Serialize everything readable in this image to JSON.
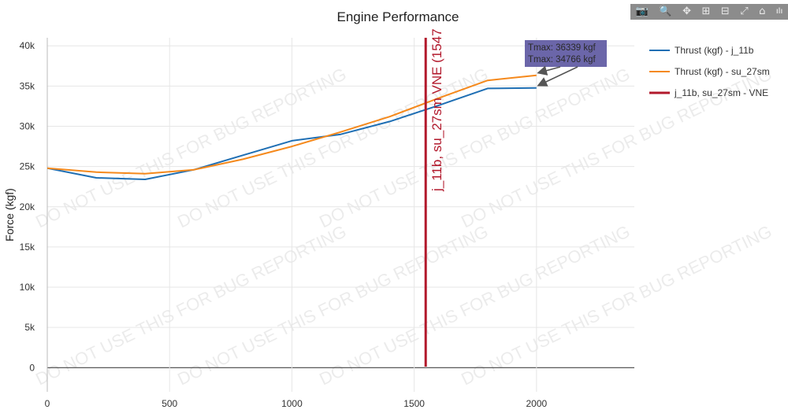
{
  "toolbar": {
    "icons": [
      "camera-icon",
      "zoom-icon",
      "pan-icon",
      "zoom-in-icon",
      "zoom-out-icon",
      "autoscale-icon",
      "home-icon",
      "plotly-logo-icon"
    ],
    "glyphs": [
      "📷",
      "🔍",
      "✥",
      "⊞",
      "⊟",
      "⤢",
      "⌂",
      "ılı"
    ]
  },
  "chart_data": {
    "type": "line",
    "title": "Engine Performance",
    "xlabel": "",
    "ylabel": "Force (kgf)",
    "xlim": [
      0,
      2400
    ],
    "ylim": [
      -3000,
      41000
    ],
    "x_ticks": [
      0,
      500,
      1000,
      1500,
      2000
    ],
    "x_tick_labels": [
      "0",
      "500",
      "1000",
      "1500",
      "2000"
    ],
    "y_ticks": [
      0,
      5000,
      10000,
      15000,
      20000,
      25000,
      30000,
      35000,
      40000
    ],
    "y_tick_labels": [
      "0",
      "5k",
      "10k",
      "15k",
      "20k",
      "25k",
      "30k",
      "35k",
      "40k"
    ],
    "series": [
      {
        "name": "Thrust (kgf) - j_11b",
        "color": "#1f6fb4",
        "x": [
          0,
          200,
          400,
          600,
          800,
          1000,
          1200,
          1400,
          1600,
          1800,
          2000
        ],
        "y": [
          24800,
          23600,
          23400,
          24600,
          26400,
          28200,
          29000,
          30600,
          32600,
          34700,
          34766
        ]
      },
      {
        "name": "Thrust (kgf) - su_27sm",
        "color": "#f5891c",
        "x": [
          0,
          200,
          400,
          600,
          800,
          1000,
          1200,
          1400,
          1600,
          1800,
          2000
        ],
        "y": [
          24800,
          24300,
          24100,
          24600,
          25900,
          27500,
          29300,
          31200,
          33500,
          35700,
          36339
        ]
      }
    ],
    "vlines": [
      {
        "name": "j_11b, su_27sm - VNE",
        "x": 1547,
        "label": "j_11b, su_27sm VNE (1547",
        "color": "#b2182b"
      }
    ],
    "annotations": [
      {
        "text": "Tmax: 36339 kgf",
        "x": 2000,
        "y": 36339
      },
      {
        "text": "Tmax: 34766 kgf",
        "x": 2000,
        "y": 34766
      }
    ],
    "watermark": "DO NOT USE THIS FOR BUG REPORTING",
    "legend_position": "top-right"
  }
}
